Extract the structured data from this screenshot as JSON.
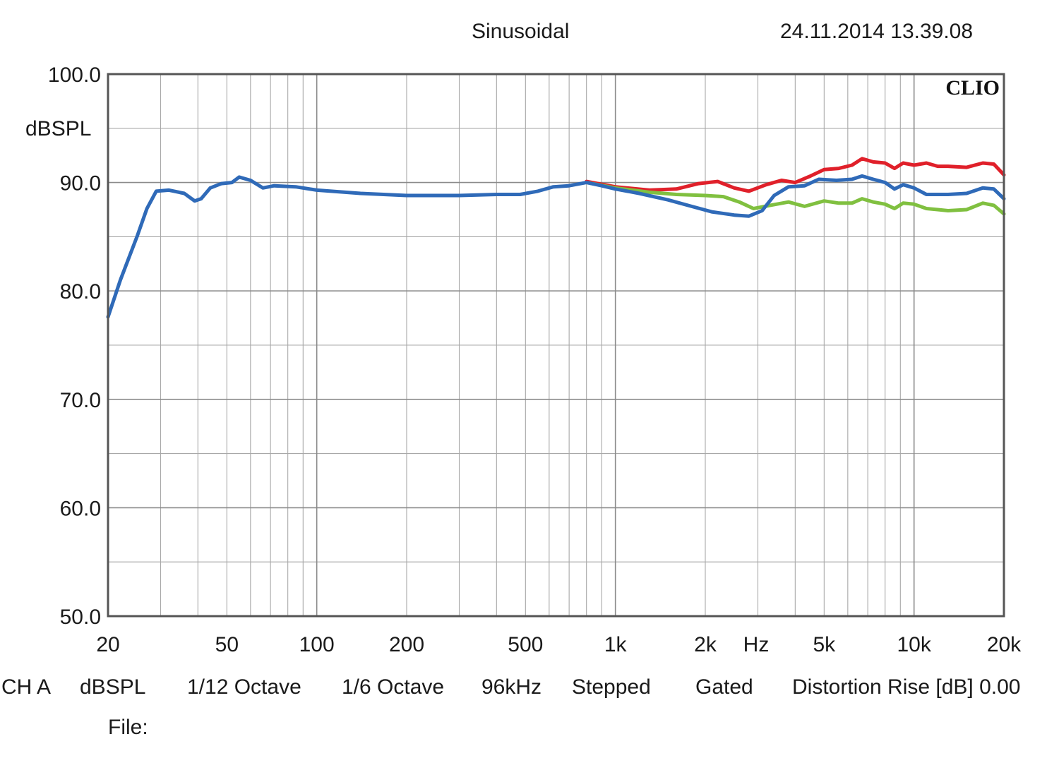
{
  "header": {
    "title": "Sinusoidal",
    "timestamp": "24.11.2014 13.39.08"
  },
  "chart_data": {
    "type": "line",
    "brand": "CLIO",
    "ylabel": "dBSPL",
    "xlabel": "Hz",
    "xscale": "log",
    "xlim": [
      20,
      20000
    ],
    "ylim": [
      50,
      100
    ],
    "y_ticks": [
      "100.0",
      "90.0",
      "80.0",
      "70.0",
      "60.0",
      "50.0"
    ],
    "y_tick_values": [
      100,
      90,
      80,
      70,
      60,
      50
    ],
    "x_ticks": [
      "20",
      "50",
      "100",
      "200",
      "500",
      "1k",
      "2k",
      "5k",
      "10k",
      "20k"
    ],
    "x_tick_values": [
      20,
      50,
      100,
      200,
      500,
      1000,
      2000,
      5000,
      10000,
      20000
    ],
    "grid": true,
    "series": [
      {
        "color": "#e0202a",
        "points": [
          [
            800,
            90.1
          ],
          [
            1000,
            89.6
          ],
          [
            1300,
            89.3
          ],
          [
            1600,
            89.4
          ],
          [
            1900,
            89.9
          ],
          [
            2200,
            90.1
          ],
          [
            2500,
            89.5
          ],
          [
            2800,
            89.2
          ],
          [
            3200,
            89.8
          ],
          [
            3600,
            90.2
          ],
          [
            4000,
            90.0
          ],
          [
            4500,
            90.6
          ],
          [
            5000,
            91.2
          ],
          [
            5600,
            91.3
          ],
          [
            6200,
            91.6
          ],
          [
            6700,
            92.2
          ],
          [
            7300,
            91.9
          ],
          [
            8000,
            91.8
          ],
          [
            8600,
            91.3
          ],
          [
            9200,
            91.8
          ],
          [
            10000,
            91.6
          ],
          [
            11000,
            91.8
          ],
          [
            12000,
            91.5
          ],
          [
            13000,
            91.5
          ],
          [
            15000,
            91.4
          ],
          [
            17000,
            91.8
          ],
          [
            18500,
            91.7
          ],
          [
            20000,
            90.7
          ]
        ]
      },
      {
        "color": "#80c040",
        "points": [
          [
            800,
            90.0
          ],
          [
            1000,
            89.5
          ],
          [
            1300,
            89.1
          ],
          [
            1600,
            88.9
          ],
          [
            2000,
            88.8
          ],
          [
            2300,
            88.7
          ],
          [
            2600,
            88.2
          ],
          [
            2900,
            87.6
          ],
          [
            3300,
            87.9
          ],
          [
            3800,
            88.2
          ],
          [
            4300,
            87.8
          ],
          [
            5000,
            88.3
          ],
          [
            5600,
            88.1
          ],
          [
            6200,
            88.1
          ],
          [
            6700,
            88.5
          ],
          [
            7300,
            88.2
          ],
          [
            8000,
            88.0
          ],
          [
            8600,
            87.6
          ],
          [
            9200,
            88.1
          ],
          [
            10000,
            88.0
          ],
          [
            11000,
            87.6
          ],
          [
            12000,
            87.5
          ],
          [
            13000,
            87.4
          ],
          [
            15000,
            87.5
          ],
          [
            17000,
            88.1
          ],
          [
            18500,
            87.9
          ],
          [
            20000,
            87.1
          ]
        ]
      },
      {
        "color": "#2f6ab8",
        "points": [
          [
            20,
            77.6
          ],
          [
            22,
            81.0
          ],
          [
            25,
            85.0
          ],
          [
            27,
            87.6
          ],
          [
            29,
            89.2
          ],
          [
            32,
            89.3
          ],
          [
            36,
            89.0
          ],
          [
            39,
            88.3
          ],
          [
            41,
            88.5
          ],
          [
            44,
            89.5
          ],
          [
            48,
            89.9
          ],
          [
            52,
            90.0
          ],
          [
            55,
            90.5
          ],
          [
            60,
            90.2
          ],
          [
            66,
            89.5
          ],
          [
            72,
            89.7
          ],
          [
            85,
            89.6
          ],
          [
            100,
            89.3
          ],
          [
            140,
            89.0
          ],
          [
            200,
            88.8
          ],
          [
            300,
            88.8
          ],
          [
            400,
            88.9
          ],
          [
            480,
            88.9
          ],
          [
            550,
            89.2
          ],
          [
            620,
            89.6
          ],
          [
            700,
            89.7
          ],
          [
            800,
            90.0
          ],
          [
            900,
            89.7
          ],
          [
            1000,
            89.4
          ],
          [
            1200,
            89.0
          ],
          [
            1500,
            88.4
          ],
          [
            1800,
            87.8
          ],
          [
            2100,
            87.3
          ],
          [
            2500,
            87.0
          ],
          [
            2800,
            86.9
          ],
          [
            3100,
            87.4
          ],
          [
            3400,
            88.8
          ],
          [
            3800,
            89.6
          ],
          [
            4300,
            89.7
          ],
          [
            4800,
            90.3
          ],
          [
            5500,
            90.2
          ],
          [
            6200,
            90.3
          ],
          [
            6700,
            90.6
          ],
          [
            7300,
            90.3
          ],
          [
            8000,
            90.0
          ],
          [
            8600,
            89.4
          ],
          [
            9200,
            89.8
          ],
          [
            10000,
            89.5
          ],
          [
            11000,
            88.9
          ],
          [
            13000,
            88.9
          ],
          [
            15000,
            89.0
          ],
          [
            17000,
            89.5
          ],
          [
            18500,
            89.4
          ],
          [
            20000,
            88.5
          ]
        ]
      }
    ]
  },
  "footer": {
    "channel": "CH A",
    "unit": "dBSPL",
    "smoothing": "1/12 Octave",
    "resolution": "1/6 Octave",
    "sample_rate": "96kHz",
    "mode": "Stepped",
    "window": "Gated",
    "distortion": "Distortion Rise [dB] 0.00",
    "file_label": "File:"
  }
}
